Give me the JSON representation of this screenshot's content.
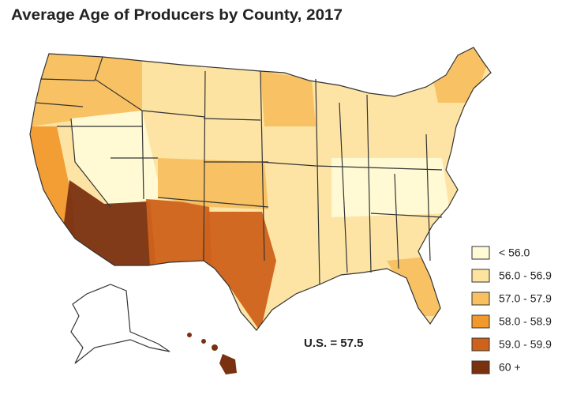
{
  "title": "Average Age of Producers by County, 2017",
  "annotation": "U.S. = 57.5",
  "legend": {
    "items": [
      {
        "label": "< 56.0",
        "color": "#fffbd6"
      },
      {
        "label": "56.0 - 56.9",
        "color": "#fde3a0"
      },
      {
        "label": "57.0 - 57.9",
        "color": "#f8c060"
      },
      {
        "label": "58.0 - 58.9",
        "color": "#f2992e"
      },
      {
        "label": "59.0 - 59.9",
        "color": "#cf621b"
      },
      {
        "label": "60 +",
        "color": "#7a3110"
      }
    ]
  }
}
